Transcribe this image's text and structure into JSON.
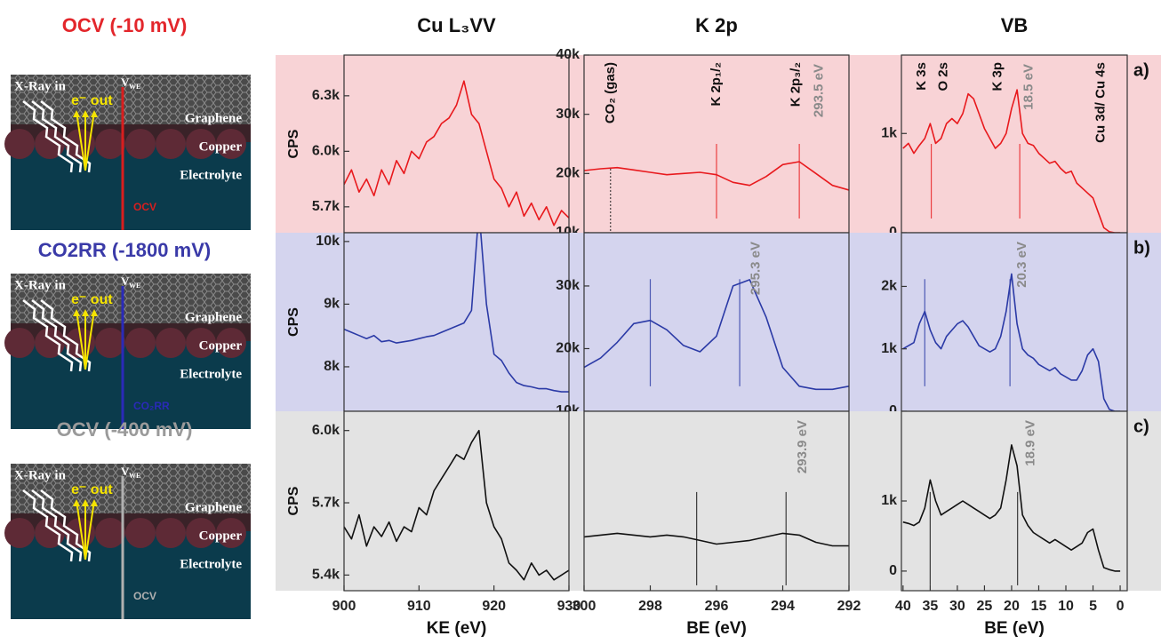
{
  "schematics": [
    {
      "title": "OCV (-10 mV)",
      "title_color": "#e3262b",
      "x_ray": "X-Ray in",
      "e_out": "e⁻ out",
      "v": "V",
      "v_sub": "WE",
      "layers": [
        "Graphene",
        "Copper",
        "Electrolyte"
      ],
      "potential": "OCV",
      "line_color": "#d81e1e"
    },
    {
      "title": "CO2RR (-1800 mV)",
      "title_color": "#3a3aa8",
      "x_ray": "X-Ray in",
      "e_out": "e⁻ out",
      "v": "V",
      "v_sub": "WE",
      "layers": [
        "Graphene",
        "Copper",
        "Electrolyte"
      ],
      "potential": "CO₂RR",
      "line_color": "#2a2ab8"
    },
    {
      "title": "OCV (-400 mV)",
      "title_color": "#9a9a9a",
      "x_ray": "X-Ray in",
      "e_out": "e⁻ out",
      "v": "V",
      "v_sub": "WE",
      "layers": [
        "Graphene",
        "Copper",
        "Electrolyte"
      ],
      "potential": "OCV",
      "line_color": "#b0b0b0"
    }
  ],
  "chart_data": [
    {
      "type": "line",
      "title": "Cu L₃VV",
      "y_label": "CPS",
      "background": "#f8d3d6",
      "color": "#e8191d",
      "x": [
        900,
        901,
        902,
        903,
        904,
        905,
        906,
        907,
        908,
        909,
        910,
        911,
        912,
        913,
        914,
        915,
        916,
        917,
        918,
        919,
        920,
        921,
        922,
        923,
        924,
        925,
        926,
        927,
        928,
        929,
        930
      ],
      "values": [
        5820,
        5900,
        5780,
        5850,
        5760,
        5900,
        5820,
        5950,
        5880,
        6000,
        5960,
        6050,
        6080,
        6150,
        6180,
        6250,
        6380,
        6200,
        6150,
        6000,
        5850,
        5800,
        5700,
        5780,
        5650,
        5720,
        5630,
        5700,
        5600,
        5680,
        5640
      ],
      "xlim": [
        900,
        930
      ],
      "ylim": [
        5560,
        6520
      ],
      "yticks": [
        {
          "value": 5700,
          "label": "5.7k"
        },
        {
          "value": 6000,
          "label": "6.0k"
        },
        {
          "value": 6300,
          "label": "6.3k"
        }
      ]
    },
    {
      "type": "line",
      "title": "K 2p",
      "background": "#f8d3d6",
      "color": "#e8191d",
      "x": [
        300,
        299.5,
        299,
        298.5,
        298,
        297.5,
        297,
        296.5,
        296,
        295.5,
        295,
        294.5,
        294,
        293.5,
        293,
        292.5,
        292
      ],
      "values": [
        20500,
        20800,
        21000,
        20600,
        20200,
        19800,
        20000,
        20200,
        19800,
        18500,
        18000,
        19500,
        21500,
        22000,
        20000,
        18000,
        17200
      ],
      "xlim": [
        300,
        292
      ],
      "ylim": [
        10000,
        40000
      ],
      "yticks": [
        {
          "value": 10000,
          "label": "10k"
        },
        {
          "value": 20000,
          "label": "20k"
        },
        {
          "value": 30000,
          "label": "30k"
        },
        {
          "value": 40000,
          "label": "40k"
        }
      ],
      "marker_lines": [
        296.0,
        293.5
      ],
      "dotted_lines": [
        299.2
      ],
      "peak_labels": [
        {
          "x": 299.2,
          "label": "CO₂ (gas)"
        },
        {
          "x": 296.0,
          "label": "K 2p₁/₂"
        },
        {
          "x": 293.6,
          "label": "K 2p₃/₂"
        }
      ],
      "energy_labels": [
        {
          "x": 292.9,
          "label": "293.5 eV"
        }
      ]
    },
    {
      "type": "line",
      "title": "VB",
      "panel_label": "a)",
      "background": "#f8d3d6",
      "color": "#e8191d",
      "x": [
        40,
        39,
        38,
        37,
        36,
        35,
        34,
        33,
        32,
        31,
        30,
        29,
        28,
        27,
        26,
        25,
        24,
        23,
        22,
        21,
        20,
        19,
        18,
        17,
        16,
        15,
        14,
        13,
        12,
        11,
        10,
        9,
        8,
        7,
        6,
        5,
        4,
        3,
        2,
        1,
        0
      ],
      "values": [
        850,
        900,
        800,
        880,
        950,
        1100,
        900,
        950,
        1100,
        1150,
        1100,
        1200,
        1400,
        1350,
        1200,
        1050,
        950,
        850,
        900,
        1000,
        1250,
        1440,
        1000,
        900,
        880,
        800,
        750,
        700,
        720,
        650,
        600,
        620,
        500,
        450,
        400,
        350,
        200,
        50,
        10,
        0,
        0
      ],
      "xlim": [
        40.3,
        -1.3
      ],
      "ylim": [
        0,
        1790
      ],
      "yticks": [
        0,
        {
          "value": 1000,
          "label": "1k"
        }
      ],
      "marker_lines": [
        34.8,
        18.5
      ],
      "peak_labels": [
        {
          "x": 36.5,
          "label": "K 3s"
        },
        {
          "x": 32.5,
          "label": "O 2s"
        },
        {
          "x": 22.5,
          "label": "K 3p"
        },
        {
          "x": 3.5,
          "label": "Cu 3d/ Cu 4s"
        }
      ],
      "energy_labels": [
        {
          "x": 16.8,
          "label": "18.5 eV"
        }
      ]
    },
    {
      "type": "line",
      "y_label": "CPS",
      "background": "#d4d4ee",
      "color": "#2b3aa6",
      "x": [
        900,
        901,
        902,
        903,
        904,
        905,
        906,
        907,
        908,
        909,
        910,
        911,
        912,
        913,
        914,
        915,
        916,
        917,
        918,
        919,
        920,
        921,
        922,
        923,
        924,
        925,
        926,
        927,
        928,
        929,
        930
      ],
      "values": [
        8600,
        8550,
        8500,
        8450,
        8500,
        8400,
        8420,
        8380,
        8400,
        8420,
        8450,
        8480,
        8500,
        8550,
        8600,
        8650,
        8700,
        8900,
        10500,
        9000,
        8200,
        8100,
        7900,
        7750,
        7700,
        7680,
        7650,
        7650,
        7620,
        7600,
        7600
      ],
      "xlim": [
        900,
        930
      ],
      "ylim": [
        7290,
        10140
      ],
      "yticks": [
        {
          "value": 8000,
          "label": "8k"
        },
        {
          "value": 9000,
          "label": "9k"
        },
        {
          "value": 10000,
          "label": "10k"
        }
      ]
    },
    {
      "type": "line",
      "background": "#d4d4ee",
      "color": "#2b3aa6",
      "x": [
        300,
        299.5,
        299,
        298.5,
        298,
        297.5,
        297,
        296.5,
        296,
        295.5,
        295,
        294.5,
        294,
        293.5,
        293,
        292.5,
        292
      ],
      "values": [
        17000,
        18500,
        21000,
        24000,
        24500,
        23000,
        20500,
        19500,
        22000,
        30000,
        31000,
        25000,
        17000,
        14000,
        13500,
        13500,
        14000
      ],
      "xlim": [
        300,
        292
      ],
      "ylim": [
        10000,
        38500
      ],
      "yticks": [
        {
          "value": 10000,
          "label": "10k"
        },
        {
          "value": 20000,
          "label": "20k"
        },
        {
          "value": 30000,
          "label": "30k"
        }
      ],
      "marker_lines": [
        298.0,
        295.3
      ],
      "energy_labels": [
        {
          "x": 294.8,
          "label": "295.3 eV"
        }
      ]
    },
    {
      "type": "line",
      "panel_label": "b)",
      "background": "#d4d4ee",
      "color": "#2b3aa6",
      "x": [
        40,
        39,
        38,
        37,
        36,
        35,
        34,
        33,
        32,
        31,
        30,
        29,
        28,
        27,
        26,
        25,
        24,
        23,
        22,
        21,
        20,
        19,
        18,
        17,
        16,
        15,
        14,
        13,
        12,
        11,
        10,
        9,
        8,
        7,
        6,
        5,
        4,
        3,
        2,
        1,
        0
      ],
      "values": [
        1000,
        1050,
        1100,
        1400,
        1600,
        1300,
        1100,
        1000,
        1200,
        1300,
        1400,
        1450,
        1350,
        1200,
        1050,
        1000,
        950,
        1000,
        1200,
        1600,
        2200,
        1400,
        1000,
        900,
        850,
        750,
        700,
        650,
        700,
        600,
        550,
        500,
        500,
        650,
        900,
        1000,
        800,
        200,
        30,
        0,
        0
      ],
      "xlim": [
        40.3,
        -1.3
      ],
      "ylim": [
        0,
        2860
      ],
      "yticks": [
        0,
        {
          "value": 1000,
          "label": "1k"
        },
        {
          "value": 2000,
          "label": "2k"
        }
      ],
      "marker_lines": [
        36.0,
        20.3
      ],
      "energy_labels": [
        {
          "x": 18.0,
          "label": "20.3 eV"
        }
      ]
    },
    {
      "type": "line",
      "y_label": "CPS",
      "x_label": "KE (eV)",
      "background": "#e3e3e3",
      "color": "#111111",
      "x": [
        900,
        901,
        902,
        903,
        904,
        905,
        906,
        907,
        908,
        909,
        910,
        911,
        912,
        913,
        914,
        915,
        916,
        917,
        918,
        919,
        920,
        921,
        922,
        923,
        924,
        925,
        926,
        927,
        928,
        929,
        930
      ],
      "values": [
        5600,
        5550,
        5650,
        5520,
        5600,
        5560,
        5620,
        5540,
        5600,
        5580,
        5680,
        5650,
        5750,
        5800,
        5850,
        5900,
        5880,
        5950,
        6000,
        5700,
        5600,
        5550,
        5450,
        5420,
        5380,
        5450,
        5400,
        5420,
        5380,
        5400,
        5420
      ],
      "xlim": [
        900,
        930
      ],
      "ylim": [
        5335,
        6080
      ],
      "xticks": [
        900,
        910,
        920,
        930
      ],
      "yticks": [
        {
          "value": 5400,
          "label": "5.4k"
        },
        {
          "value": 5700,
          "label": "5.7k"
        },
        {
          "value": 6000,
          "label": "6.0k"
        }
      ]
    },
    {
      "type": "line",
      "x_label": "BE (eV)",
      "background": "#e3e3e3",
      "color": "#111111",
      "x": [
        300,
        299.5,
        299,
        298.5,
        298,
        297.5,
        297,
        296.5,
        296,
        295.5,
        295,
        294.5,
        294,
        293.5,
        293,
        292.5,
        292
      ],
      "values": [
        30,
        31,
        32,
        31,
        30,
        31,
        30,
        28,
        26,
        27,
        28,
        30,
        32,
        31,
        27,
        25,
        25
      ],
      "xlim": [
        300,
        292
      ],
      "ylim": [
        0,
        100
      ],
      "xticks": [
        300,
        298,
        296,
        294,
        292
      ],
      "marker_lines": [
        296.6,
        293.9
      ],
      "energy_labels": [
        {
          "x": 293.4,
          "label": "293.9 eV"
        }
      ]
    },
    {
      "type": "line",
      "x_label": "BE (eV)",
      "panel_label": "c)",
      "background": "#e3e3e3",
      "color": "#111111",
      "x": [
        40,
        39,
        38,
        37,
        36,
        35,
        34,
        33,
        32,
        31,
        30,
        29,
        28,
        27,
        26,
        25,
        24,
        23,
        22,
        21,
        20,
        19,
        18,
        17,
        16,
        15,
        14,
        13,
        12,
        11,
        10,
        9,
        8,
        7,
        6,
        5,
        4,
        3,
        2,
        1,
        0
      ],
      "values": [
        700,
        680,
        650,
        700,
        900,
        1300,
        1000,
        800,
        850,
        900,
        950,
        1000,
        950,
        900,
        850,
        800,
        750,
        800,
        900,
        1300,
        1800,
        1500,
        800,
        650,
        550,
        500,
        450,
        400,
        450,
        400,
        350,
        300,
        350,
        400,
        550,
        600,
        300,
        50,
        20,
        0,
        0
      ],
      "xlim": [
        40.3,
        -1.3
      ],
      "ylim": [
        -280,
        2280
      ],
      "xticks": [
        40,
        35,
        30,
        25,
        20,
        15,
        10,
        5,
        0
      ],
      "yticks": [
        0,
        {
          "value": 1000,
          "label": "1k"
        }
      ],
      "marker_lines": [
        35.0,
        18.9
      ],
      "energy_labels": [
        {
          "x": 16.5,
          "label": "18.9 eV"
        }
      ]
    }
  ]
}
